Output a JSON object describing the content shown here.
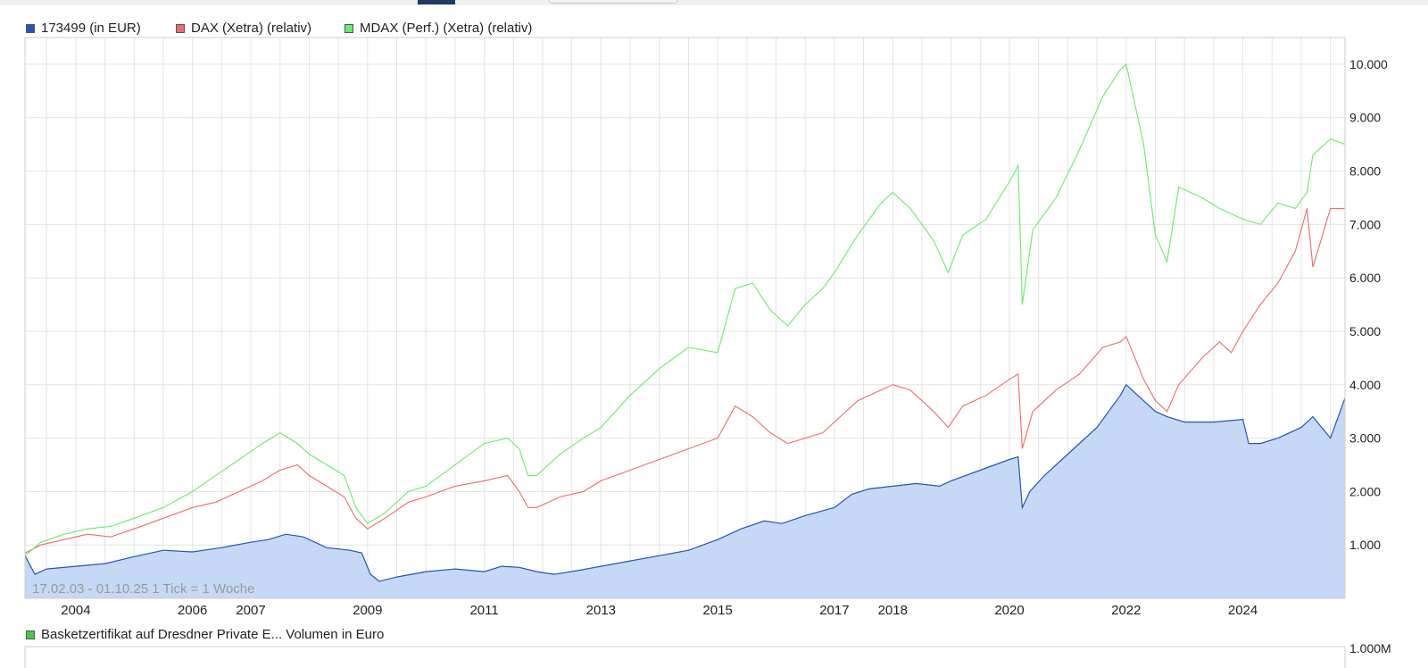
{
  "tabs": {
    "active_index": 0
  },
  "legend": [
    {
      "label": "173499 (in EUR)",
      "color": "#2255bb"
    },
    {
      "label": "DAX (Xetra) (relativ)",
      "color": "#f06a6a"
    },
    {
      "label": "MDAX (Perf.) (Xetra) (relativ)",
      "color": "#66ee66"
    }
  ],
  "volume_legend": {
    "label": "Basketzertifikat auf Dresdner Private E... Volumen in Euro",
    "color": "#44cc44"
  },
  "range_text": "17.02.03 - 01.10.25   1 Tick = 1 Woche",
  "chart_data": {
    "type": "line",
    "title": "",
    "xlabel": "",
    "ylabel": "",
    "xlim": [
      "2003-02-17",
      "2025-10-01"
    ],
    "ylim": [
      0,
      10500
    ],
    "grid": true,
    "legend_position": "top-left",
    "y_axis_side": "right",
    "y_ticks": [
      1000,
      2000,
      3000,
      4000,
      5000,
      6000,
      7000,
      8000,
      9000,
      10000
    ],
    "y_tick_labels": [
      "1.000",
      "2.000",
      "3.000",
      "4.000",
      "5.000",
      "6.000",
      "7.000",
      "8.000",
      "9.000",
      "10.000"
    ],
    "x_tick_labels": [
      {
        "label": "2004",
        "date": 2004.0
      },
      {
        "label": "2006",
        "date": 2006.0
      },
      {
        "label": "2007",
        "date": 2007.0
      },
      {
        "label": "2009",
        "date": 2009.0
      },
      {
        "label": "2011",
        "date": 2011.0
      },
      {
        "label": "2013",
        "date": 2013.0
      },
      {
        "label": "2015",
        "date": 2015.0
      },
      {
        "label": "2017",
        "date": 2017.0
      },
      {
        "label": "2018",
        "date": 2018.0
      },
      {
        "label": "2020",
        "date": 2020.0
      },
      {
        "label": "2022",
        "date": 2022.0
      },
      {
        "label": "2024",
        "date": 2024.0
      }
    ],
    "series": [
      {
        "name": "173499 (in EUR)",
        "color": "#2255bb",
        "fill": "#c5d8f6",
        "style": "area",
        "x": [
          2003.13,
          2003.3,
          2003.5,
          2004.0,
          2004.5,
          2005.0,
          2005.5,
          2006.0,
          2006.5,
          2007.0,
          2007.3,
          2007.6,
          2007.9,
          2008.3,
          2008.7,
          2008.9,
          2009.05,
          2009.2,
          2009.5,
          2010.0,
          2010.5,
          2011.0,
          2011.3,
          2011.6,
          2011.9,
          2012.2,
          2012.6,
          2013.0,
          2013.5,
          2014.0,
          2014.5,
          2015.0,
          2015.4,
          2015.8,
          2016.1,
          2016.5,
          2017.0,
          2017.3,
          2017.6,
          2018.0,
          2018.4,
          2018.8,
          2019.0,
          2019.5,
          2020.0,
          2020.15,
          2020.22,
          2020.35,
          2020.6,
          2021.0,
          2021.5,
          2021.9,
          2022.0,
          2022.3,
          2022.5,
          2022.7,
          2023.0,
          2023.5,
          2024.0,
          2024.1,
          2024.3,
          2024.6,
          2025.0,
          2025.2,
          2025.5,
          2025.75
        ],
        "y": [
          800,
          450,
          550,
          600,
          650,
          780,
          900,
          870,
          950,
          1050,
          1100,
          1200,
          1150,
          950,
          900,
          850,
          450,
          320,
          400,
          500,
          550,
          500,
          600,
          580,
          500,
          450,
          520,
          600,
          700,
          800,
          900,
          1100,
          1300,
          1450,
          1400,
          1550,
          1700,
          1950,
          2050,
          2100,
          2150,
          2100,
          2200,
          2400,
          2600,
          2650,
          1700,
          2000,
          2300,
          2700,
          3200,
          3800,
          4000,
          3700,
          3500,
          3400,
          3300,
          3300,
          3350,
          2900,
          2900,
          3000,
          3200,
          3400,
          3000,
          3750
        ]
      },
      {
        "name": "DAX (Xetra) (relativ)",
        "color": "#f06a6a",
        "style": "line",
        "x": [
          2003.13,
          2003.4,
          2003.8,
          2004.2,
          2004.6,
          2005.0,
          2005.5,
          2006.0,
          2006.4,
          2006.8,
          2007.2,
          2007.5,
          2007.8,
          2008.0,
          2008.3,
          2008.6,
          2008.8,
          2009.0,
          2009.3,
          2009.7,
          2010.0,
          2010.5,
          2011.0,
          2011.4,
          2011.6,
          2011.75,
          2011.9,
          2012.3,
          2012.7,
          2013.0,
          2013.5,
          2014.0,
          2014.5,
          2015.0,
          2015.3,
          2015.6,
          2015.9,
          2016.2,
          2016.5,
          2016.8,
          2017.0,
          2017.4,
          2017.8,
          2018.0,
          2018.3,
          2018.7,
          2018.95,
          2019.2,
          2019.6,
          2020.0,
          2020.15,
          2020.22,
          2020.4,
          2020.8,
          2021.2,
          2021.6,
          2021.9,
          2022.0,
          2022.3,
          2022.5,
          2022.7,
          2022.9,
          2023.3,
          2023.6,
          2023.8,
          2024.0,
          2024.3,
          2024.6,
          2024.9,
          2025.1,
          2025.2,
          2025.5,
          2025.75
        ],
        "y": [
          850,
          1000,
          1100,
          1200,
          1150,
          1300,
          1500,
          1700,
          1800,
          2000,
          2200,
          2400,
          2500,
          2300,
          2100,
          1900,
          1500,
          1300,
          1500,
          1800,
          1900,
          2100,
          2200,
          2300,
          2000,
          1700,
          1700,
          1900,
          2000,
          2200,
          2400,
          2600,
          2800,
          3000,
          3600,
          3400,
          3100,
          2900,
          3000,
          3100,
          3300,
          3700,
          3900,
          4000,
          3900,
          3500,
          3200,
          3600,
          3800,
          4100,
          4200,
          2800,
          3500,
          3900,
          4200,
          4700,
          4800,
          4900,
          4100,
          3700,
          3500,
          4000,
          4500,
          4800,
          4600,
          5000,
          5500,
          5900,
          6500,
          7300,
          6200,
          7300,
          7300
        ]
      },
      {
        "name": "MDAX (Perf.) (Xetra) (relativ)",
        "color": "#66ee66",
        "style": "line",
        "x": [
          2003.13,
          2003.4,
          2003.8,
          2004.2,
          2004.6,
          2005.0,
          2005.5,
          2006.0,
          2006.4,
          2006.8,
          2007.2,
          2007.5,
          2007.8,
          2008.0,
          2008.3,
          2008.6,
          2008.8,
          2009.0,
          2009.3,
          2009.7,
          2010.0,
          2010.5,
          2011.0,
          2011.4,
          2011.6,
          2011.75,
          2011.9,
          2012.3,
          2012.7,
          2013.0,
          2013.5,
          2014.0,
          2014.5,
          2015.0,
          2015.3,
          2015.6,
          2015.9,
          2016.2,
          2016.5,
          2016.8,
          2017.0,
          2017.4,
          2017.8,
          2018.0,
          2018.3,
          2018.7,
          2018.95,
          2019.2,
          2019.6,
          2020.0,
          2020.15,
          2020.22,
          2020.4,
          2020.8,
          2021.2,
          2021.6,
          2021.9,
          2022.0,
          2022.3,
          2022.5,
          2022.7,
          2022.9,
          2023.3,
          2023.6,
          2023.8,
          2024.0,
          2024.3,
          2024.6,
          2024.9,
          2025.1,
          2025.2,
          2025.5,
          2025.75
        ],
        "y": [
          800,
          1050,
          1200,
          1300,
          1350,
          1500,
          1700,
          2000,
          2300,
          2600,
          2900,
          3100,
          2900,
          2700,
          2500,
          2300,
          1700,
          1400,
          1600,
          2000,
          2100,
          2500,
          2900,
          3000,
          2800,
          2300,
          2300,
          2700,
          3000,
          3200,
          3800,
          4300,
          4700,
          4600,
          5800,
          5900,
          5400,
          5100,
          5500,
          5800,
          6100,
          6800,
          7400,
          7600,
          7300,
          6700,
          6100,
          6800,
          7100,
          7800,
          8100,
          5500,
          6900,
          7500,
          8400,
          9400,
          9900,
          10000,
          8500,
          6800,
          6300,
          7700,
          7500,
          7300,
          7200,
          7100,
          7000,
          7400,
          7300,
          7600,
          8300,
          8600,
          8500
        ]
      }
    ],
    "volume_panel": {
      "y_tick_labels": [
        "1.000M"
      ]
    }
  }
}
